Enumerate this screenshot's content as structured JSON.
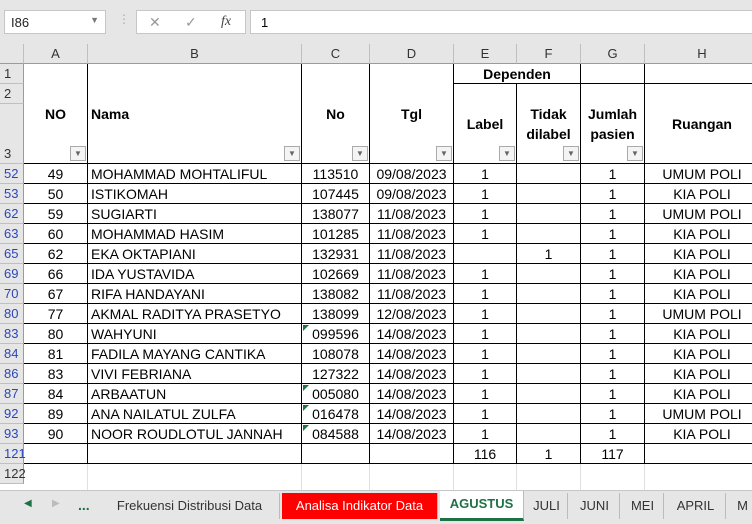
{
  "formula_bar": {
    "name_box": "I86",
    "formula": "1",
    "cancel_icon": "✕",
    "enter_icon": "✓",
    "fx_label": "fx"
  },
  "columns": [
    "A",
    "B",
    "C",
    "D",
    "E",
    "F",
    "G",
    "H"
  ],
  "header_rows": [
    "1",
    "2",
    "3"
  ],
  "headers": {
    "no": "NO",
    "nama": "Nama",
    "no2": "No",
    "tgl": "Tgl",
    "group": "Dependen",
    "label": "Label",
    "tidak": "Tidak dilabel",
    "jumlah": "Jumlah pasien",
    "ruangan": "Ruangan"
  },
  "rows": [
    {
      "r": "52",
      "no": "49",
      "nama": "MOHAMMAD MOHTALIFUL",
      "id": "113510",
      "tgl": "09/08/2023",
      "label": "1",
      "tidak": "",
      "jumlah": "1",
      "ruangan": "UMUM POLI",
      "flag": false
    },
    {
      "r": "53",
      "no": "50",
      "nama": "ISTIKOMAH",
      "id": "107445",
      "tgl": "09/08/2023",
      "label": "1",
      "tidak": "",
      "jumlah": "1",
      "ruangan": "KIA POLI",
      "flag": false
    },
    {
      "r": "62",
      "no": "59",
      "nama": "SUGIARTI",
      "id": "138077",
      "tgl": "11/08/2023",
      "label": "1",
      "tidak": "",
      "jumlah": "1",
      "ruangan": "UMUM POLI",
      "flag": false
    },
    {
      "r": "63",
      "no": "60",
      "nama": "MOHAMMAD HASIM",
      "id": "101285",
      "tgl": "11/08/2023",
      "label": "1",
      "tidak": "",
      "jumlah": "1",
      "ruangan": "KIA POLI",
      "flag": false
    },
    {
      "r": "65",
      "no": "62",
      "nama": "EKA OKTAPIANI",
      "id": "132931",
      "tgl": "11/08/2023",
      "label": "",
      "tidak": "1",
      "jumlah": "1",
      "ruangan": "KIA POLI",
      "flag": false
    },
    {
      "r": "69",
      "no": "66",
      "nama": "IDA YUSTAVIDA",
      "id": "102669",
      "tgl": "11/08/2023",
      "label": "1",
      "tidak": "",
      "jumlah": "1",
      "ruangan": "KIA POLI",
      "flag": false
    },
    {
      "r": "70",
      "no": "67",
      "nama": "RIFA HANDAYANI",
      "id": "138082",
      "tgl": "11/08/2023",
      "label": "1",
      "tidak": "",
      "jumlah": "1",
      "ruangan": "KIA POLI",
      "flag": false
    },
    {
      "r": "80",
      "no": "77",
      "nama": "AKMAL RADITYA PRASETYO",
      "id": "138099",
      "tgl": "12/08/2023",
      "label": "1",
      "tidak": "",
      "jumlah": "1",
      "ruangan": "UMUM POLI",
      "flag": false
    },
    {
      "r": "83",
      "no": "80",
      "nama": "WAHYUNI",
      "id": "099596",
      "tgl": "14/08/2023",
      "label": "1",
      "tidak": "",
      "jumlah": "1",
      "ruangan": "KIA POLI",
      "flag": true
    },
    {
      "r": "84",
      "no": "81",
      "nama": "FADILA MAYANG CANTIKA",
      "id": "108078",
      "tgl": "14/08/2023",
      "label": "1",
      "tidak": "",
      "jumlah": "1",
      "ruangan": "KIA POLI",
      "flag": false
    },
    {
      "r": "86",
      "no": "83",
      "nama": "VIVI FEBRIANA",
      "id": "127322",
      "tgl": "14/08/2023",
      "label": "1",
      "tidak": "",
      "jumlah": "1",
      "ruangan": "KIA POLI",
      "flag": false
    },
    {
      "r": "87",
      "no": "84",
      "nama": "ARBAATUN",
      "id": "005080",
      "tgl": "14/08/2023",
      "label": "1",
      "tidak": "",
      "jumlah": "1",
      "ruangan": "KIA POLI",
      "flag": true
    },
    {
      "r": "92",
      "no": "89",
      "nama": "ANA NAILATUL ZULFA",
      "id": "016478",
      "tgl": "14/08/2023",
      "label": "1",
      "tidak": "",
      "jumlah": "1",
      "ruangan": "UMUM POLI",
      "flag": true
    },
    {
      "r": "93",
      "no": "90",
      "nama": "NOOR ROUDLOTUL JANNAH",
      "id": "084588",
      "tgl": "14/08/2023",
      "label": "1",
      "tidak": "",
      "jumlah": "1",
      "ruangan": "KIA POLI",
      "flag": true
    }
  ],
  "totals": {
    "r": "121",
    "label": "116",
    "tidak": "1",
    "jumlah": "117"
  },
  "empty_row": "122",
  "tabs": {
    "ellipsis": "...",
    "items": [
      {
        "label": "Frekuensi Distribusi Data",
        "active": false
      },
      {
        "label": "Analisa Indikator Data",
        "active": false,
        "color": "#ff0000"
      },
      {
        "label": "AGUSTUS",
        "active": true,
        "color": "#1e7145"
      },
      {
        "label": "JULI",
        "active": false
      },
      {
        "label": "JUNI",
        "active": false
      },
      {
        "label": "MEI",
        "active": false
      },
      {
        "label": "APRIL",
        "active": false
      },
      {
        "label": "M",
        "active": false
      }
    ]
  }
}
